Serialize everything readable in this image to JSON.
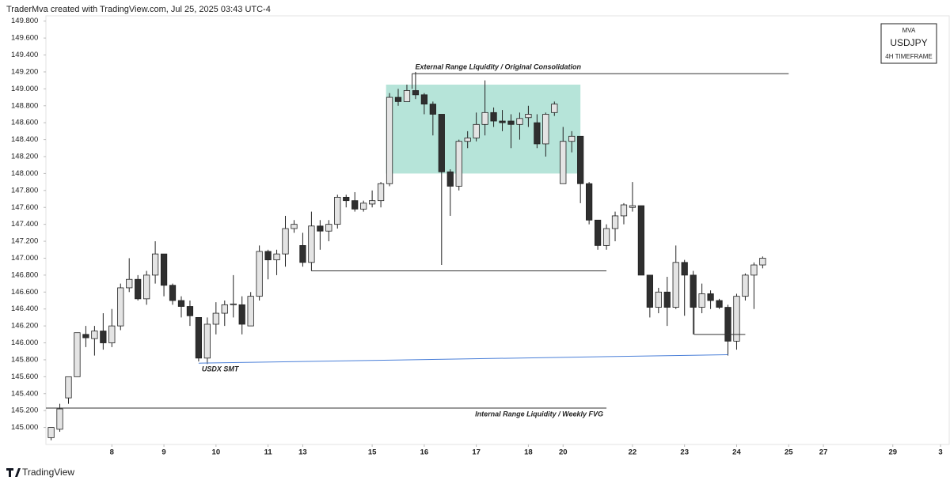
{
  "header": "TraderMva created with TradingView.com, Jul 25, 2025 03:43 UTC-4",
  "footer": "TradingView",
  "legend_box": [
    "MVA",
    "USDJPY",
    "4H TIMEFRAME"
  ],
  "chart_data": {
    "type": "candlestick",
    "up_color": "#e4e4e4",
    "down_color": "#2f2f2f",
    "outline_color": "#222222",
    "ylim": [
      144.8,
      149.9
    ],
    "yticks": [
      {
        "value": 145.0,
        "label": "145.000"
      },
      {
        "value": 145.2,
        "label": "145.200"
      },
      {
        "value": 145.4,
        "label": "145.400"
      },
      {
        "value": 145.6,
        "label": "145.600"
      },
      {
        "value": 145.8,
        "label": "145.800"
      },
      {
        "value": 146.0,
        "label": "146.000"
      },
      {
        "value": 146.2,
        "label": "146.200"
      },
      {
        "value": 146.4,
        "label": "146.400"
      },
      {
        "value": 146.6,
        "label": "146.600"
      },
      {
        "value": 146.8,
        "label": "146.800"
      },
      {
        "value": 147.0,
        "label": "147.000"
      },
      {
        "value": 147.2,
        "label": "147.200"
      },
      {
        "value": 147.4,
        "label": "147.400"
      },
      {
        "value": 147.6,
        "label": "147.600"
      },
      {
        "value": 147.8,
        "label": "147.800"
      },
      {
        "value": 148.0,
        "label": "148.000"
      },
      {
        "value": 148.2,
        "label": "148.200"
      },
      {
        "value": 148.4,
        "label": "148.400"
      },
      {
        "value": 148.6,
        "label": "148.600"
      },
      {
        "value": 148.8,
        "label": "148.800"
      },
      {
        "value": 149.0,
        "label": "149.000"
      },
      {
        "value": 149.2,
        "label": "149.200"
      },
      {
        "value": 149.4,
        "label": "149.400"
      },
      {
        "value": 149.6,
        "label": "149.600"
      },
      {
        "value": 149.8,
        "label": "149.800"
      }
    ],
    "xlim": [
      -0.6,
      103.5
    ],
    "xticks": [
      {
        "value": 7,
        "label": "8"
      },
      {
        "value": 13,
        "label": "9"
      },
      {
        "value": 19,
        "label": "10"
      },
      {
        "value": 25,
        "label": "11"
      },
      {
        "value": 29,
        "label": "13"
      },
      {
        "value": 37,
        "label": "15"
      },
      {
        "value": 43,
        "label": "16"
      },
      {
        "value": 49,
        "label": "17"
      },
      {
        "value": 55,
        "label": "18"
      },
      {
        "value": 59,
        "label": "20"
      },
      {
        "value": 67,
        "label": "22"
      },
      {
        "value": 73,
        "label": "23"
      },
      {
        "value": 79,
        "label": "24"
      },
      {
        "value": 85,
        "label": "25"
      },
      {
        "value": 89,
        "label": "27"
      },
      {
        "value": 97,
        "label": "29"
      },
      {
        "value": 102.5,
        "label": "3"
      }
    ],
    "open": [
      144.88,
      144.98,
      145.35,
      145.6,
      146.1,
      146.05,
      146.14,
      146.0,
      146.2,
      146.65,
      146.75,
      146.52,
      146.8,
      147.05,
      146.68,
      146.5,
      146.43,
      146.3,
      145.82,
      146.22,
      146.35,
      146.45,
      146.45,
      146.2,
      146.55,
      147.08,
      146.98,
      147.05,
      147.35,
      147.15,
      146.95,
      147.38,
      147.32,
      147.4,
      147.72,
      147.68,
      147.58,
      147.64,
      147.68,
      147.88,
      148.9,
      148.85,
      148.98,
      148.93,
      148.82,
      148.7,
      148.02,
      147.85,
      148.38,
      148.42,
      148.58,
      148.72,
      148.62,
      148.62,
      148.58,
      148.66,
      148.6,
      148.35,
      148.72,
      147.88,
      148.38,
      148.44,
      147.88,
      147.45,
      147.15,
      147.35,
      147.5,
      147.6,
      147.62,
      146.8,
      146.42,
      146.6,
      146.42,
      146.95,
      146.8,
      146.42,
      146.58,
      146.5,
      146.42,
      146.02,
      146.55,
      146.8,
      146.92
    ],
    "high": [
      145.0,
      145.28,
      145.6,
      146.12,
      146.2,
      146.2,
      146.35,
      146.4,
      146.7,
      147.0,
      146.8,
      146.85,
      147.2,
      147.05,
      146.7,
      146.55,
      146.5,
      146.3,
      146.3,
      146.48,
      146.5,
      146.8,
      146.55,
      146.6,
      147.15,
      147.1,
      147.1,
      147.5,
      147.45,
      147.3,
      147.55,
      147.45,
      147.45,
      147.75,
      147.75,
      147.78,
      147.68,
      147.8,
      147.9,
      148.95,
      149.0,
      149.05,
      149.2,
      148.95,
      148.85,
      148.7,
      148.05,
      148.4,
      148.5,
      148.72,
      149.1,
      148.78,
      148.75,
      148.7,
      148.72,
      148.8,
      148.7,
      148.72,
      148.85,
      148.55,
      148.5,
      148.44,
      147.9,
      147.45,
      147.4,
      147.55,
      147.65,
      147.9,
      147.62,
      146.8,
      146.65,
      146.78,
      147.15,
      146.98,
      146.85,
      146.7,
      146.62,
      146.52,
      146.45,
      146.58,
      146.82,
      146.95,
      147.02
    ],
    "low": [
      144.85,
      144.95,
      145.28,
      145.6,
      145.95,
      145.85,
      145.92,
      145.95,
      146.15,
      146.6,
      146.5,
      146.45,
      146.7,
      146.55,
      146.45,
      146.3,
      146.2,
      145.78,
      145.75,
      146.1,
      146.2,
      146.3,
      146.1,
      146.2,
      146.5,
      146.75,
      146.8,
      146.9,
      147.3,
      146.9,
      146.85,
      147.1,
      147.2,
      147.35,
      147.6,
      147.55,
      147.55,
      147.6,
      147.6,
      147.85,
      148.8,
      148.85,
      148.88,
      148.7,
      148.45,
      146.92,
      147.5,
      147.8,
      148.3,
      148.38,
      148.45,
      148.55,
      148.5,
      148.3,
      148.4,
      148.55,
      148.3,
      148.2,
      148.68,
      147.88,
      148.25,
      147.65,
      147.4,
      147.1,
      147.1,
      147.2,
      147.4,
      147.55,
      146.8,
      146.3,
      146.35,
      146.2,
      146.4,
      146.32,
      146.1,
      146.35,
      146.4,
      146.4,
      145.85,
      145.92,
      146.5,
      146.4,
      146.88
    ],
    "close": [
      145.0,
      145.22,
      145.6,
      146.12,
      146.06,
      146.14,
      146.0,
      146.2,
      146.65,
      146.75,
      146.52,
      146.8,
      147.05,
      146.68,
      146.5,
      146.43,
      146.32,
      145.82,
      146.22,
      146.35,
      146.45,
      146.46,
      146.22,
      146.55,
      147.08,
      146.98,
      147.05,
      147.35,
      147.4,
      146.95,
      147.38,
      147.32,
      147.4,
      147.72,
      147.68,
      147.58,
      147.65,
      147.68,
      147.88,
      148.9,
      148.85,
      148.98,
      148.93,
      148.82,
      148.7,
      148.02,
      147.85,
      148.38,
      148.42,
      148.58,
      148.72,
      148.62,
      148.6,
      148.58,
      148.65,
      148.7,
      148.35,
      148.7,
      148.82,
      148.38,
      148.44,
      147.88,
      147.45,
      147.15,
      147.35,
      147.5,
      147.63,
      147.62,
      146.8,
      146.42,
      146.6,
      146.42,
      146.95,
      146.8,
      146.42,
      146.58,
      146.5,
      146.42,
      146.02,
      146.55,
      146.8,
      146.92,
      147.0
    ],
    "zones": [
      {
        "x": [
          38.6,
          61
        ],
        "y": [
          148.0,
          149.05
        ],
        "color": "#b6e4d9"
      }
    ],
    "lines": [
      {
        "text": "External Range Liquidity / Original Consolidation",
        "text_position": "above-start",
        "x": [
          41.6,
          85
        ],
        "y": [
          149.18,
          149.18
        ],
        "drop": 149.0,
        "color": "#333333"
      },
      {
        "x": [
          30,
          64
        ],
        "y": [
          146.85,
          146.85
        ],
        "color": "#333333"
      },
      {
        "text": "Internal Range Liquidity / Weekly FVG",
        "text_position": "below-end",
        "x": [
          -0.6,
          64
        ],
        "y": [
          145.23,
          145.23
        ],
        "color": "#333333"
      },
      {
        "text": "USDX SMT",
        "text_position": "below-start",
        "x": [
          17,
          78
        ],
        "y": [
          145.76,
          145.86
        ],
        "color": "#4a7fd8"
      },
      {
        "x": [
          74.1,
          80
        ],
        "y": [
          146.1,
          146.1
        ],
        "drop": 146.42,
        "color": "#333333"
      }
    ]
  }
}
